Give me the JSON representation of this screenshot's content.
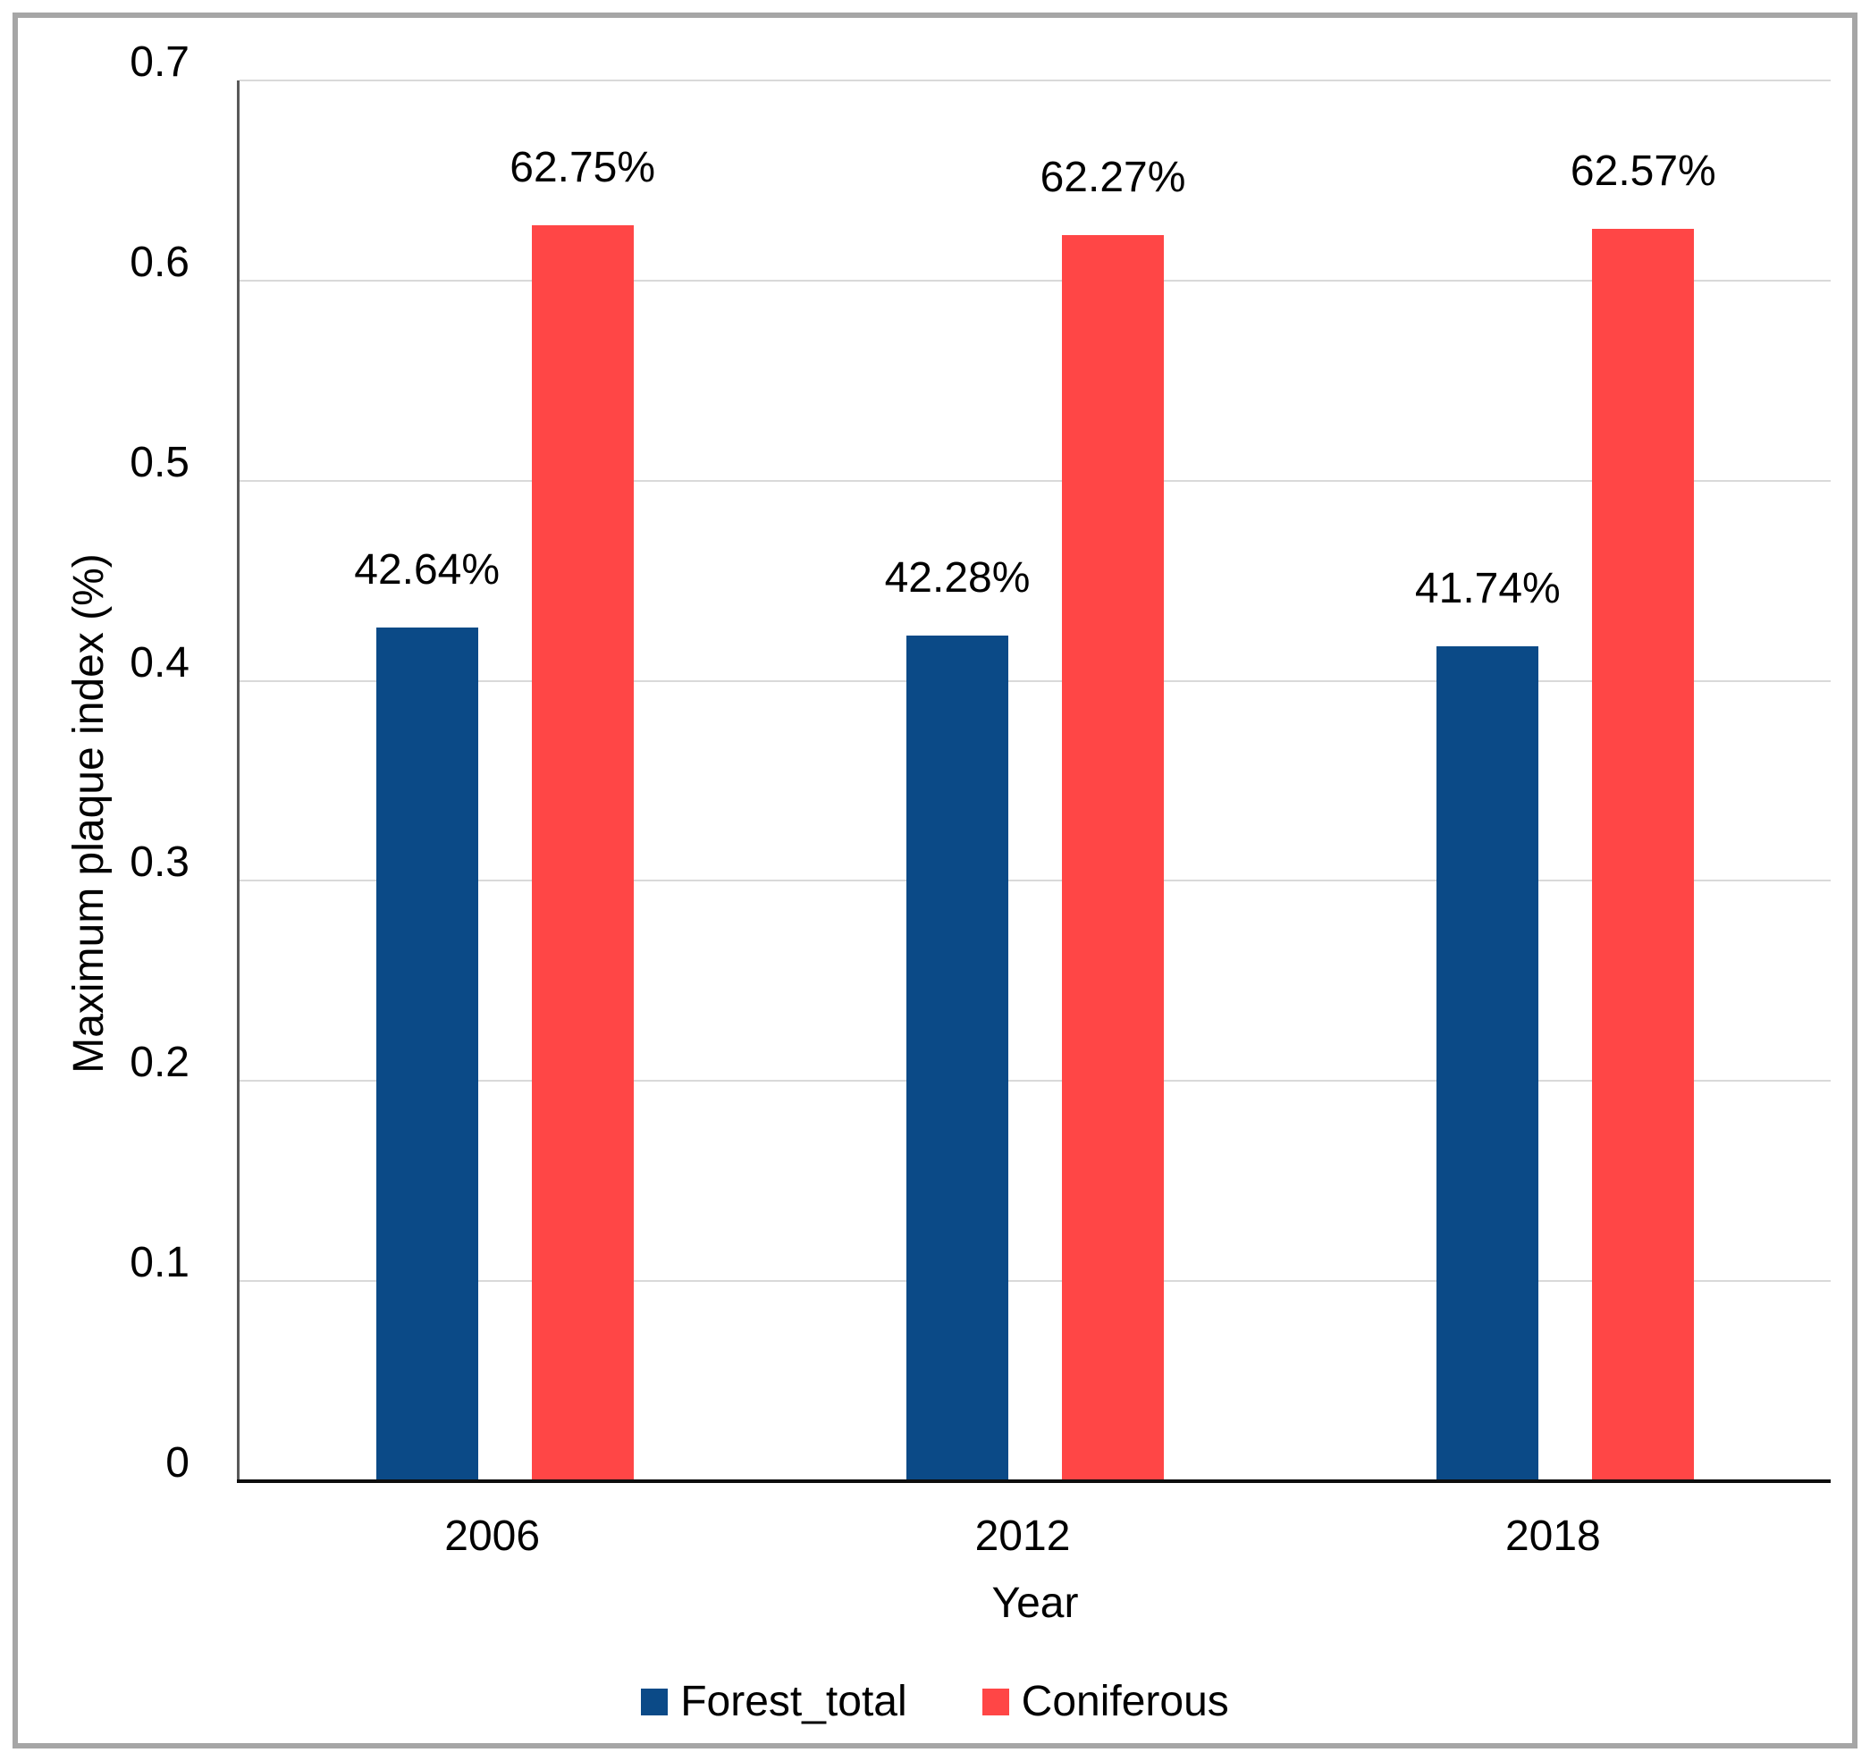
{
  "chart_data": {
    "type": "bar",
    "title": "",
    "categories": [
      "2006",
      "2012",
      "2018"
    ],
    "series": [
      {
        "name": "Forest_total",
        "color": "#0b4a87",
        "values": [
          0.4264,
          0.4228,
          0.4174
        ],
        "data_labels": [
          "42.64%",
          "42.28%",
          "41.74%"
        ]
      },
      {
        "name": "Coniferous",
        "color": "#ff4646",
        "values": [
          0.6275,
          0.6227,
          0.6257
        ],
        "data_labels": [
          "62.75%",
          "62.27%",
          "62.57%"
        ]
      }
    ],
    "xlabel": "Year",
    "ylabel": "Maximum plaque index (%)",
    "ylim": [
      0,
      0.7
    ],
    "ytick_step": 0.1,
    "ytick_labels": [
      "0",
      "0.1",
      "0.2",
      "0.3",
      "0.4",
      "0.5",
      "0.6",
      "0.7"
    ],
    "grid": true,
    "legend_position": "bottom",
    "colors": {
      "gridline": "#d9d9d9",
      "y_axis_line": "#595959",
      "x_axis_line": "#0d0d0d",
      "frame_border": "#a6a6a6",
      "text": "#000000",
      "background": "#ffffff"
    }
  }
}
